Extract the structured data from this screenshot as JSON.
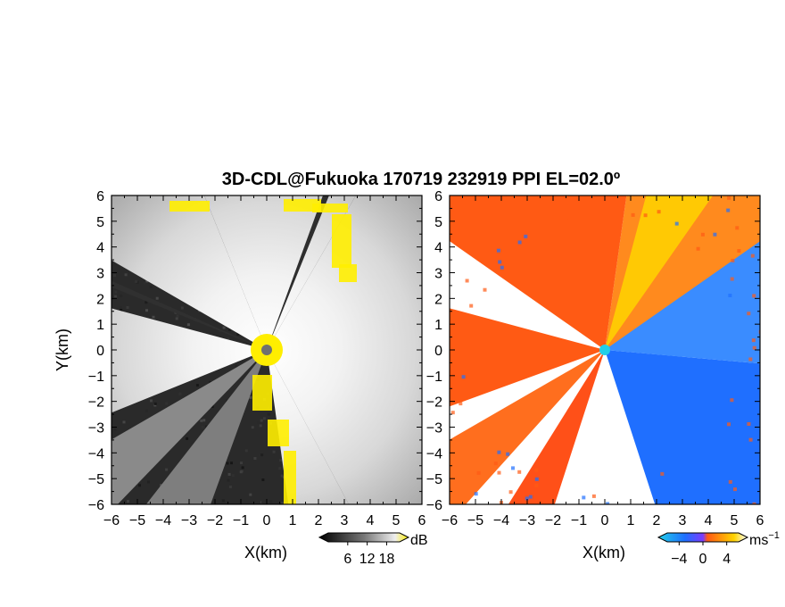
{
  "title": "3D-CDL@Fukuoka 170719 232919 PPI EL=02.0º",
  "colors": {
    "background": "#ffffff",
    "snr_noise": "#2a2a2a",
    "snr_strong": "#f4f4f4",
    "snr_flag": "#ffee00",
    "vel_negative": "#1f6fff",
    "vel_positive": "#ff5a14",
    "vel_high": "#ffd400",
    "radar_site_left": "#707070",
    "radar_site_right": "#22cfe8"
  },
  "chart_data": [
    {
      "type": "heatmap",
      "panel": "snr",
      "xlabel": "X(km)",
      "ylabel": "Y(km)",
      "xlim": [
        -6,
        6
      ],
      "ylim": [
        -6,
        6
      ],
      "xticks": [
        -6,
        -5,
        -4,
        -3,
        -2,
        -1,
        0,
        1,
        2,
        3,
        4,
        5,
        6
      ],
      "yticks": [
        -6,
        -5,
        -4,
        -3,
        -2,
        -1,
        0,
        1,
        2,
        3,
        4,
        5,
        6
      ],
      "colorbar": {
        "unit": "dB",
        "ticks": [
          6,
          12,
          18
        ],
        "range": [
          0,
          22
        ]
      },
      "radar_site": [
        0,
        0
      ]
    },
    {
      "type": "heatmap",
      "panel": "doppler_velocity",
      "xlabel": "X(km)",
      "ylabel": "",
      "xlim": [
        -6,
        6
      ],
      "ylim": [
        -6,
        6
      ],
      "xticks": [
        -6,
        -5,
        -4,
        -3,
        -2,
        -1,
        0,
        1,
        2,
        3,
        4,
        5,
        6
      ],
      "yticks": [
        -6,
        -5,
        -4,
        -3,
        -2,
        -1,
        0,
        1,
        2,
        3,
        4,
        5,
        6
      ],
      "colorbar": {
        "unit": "ms",
        "unit_exponent": "−1",
        "ticks": [
          -4,
          0,
          4
        ],
        "range": [
          -6,
          6
        ]
      },
      "radar_site": [
        0,
        0
      ]
    }
  ]
}
